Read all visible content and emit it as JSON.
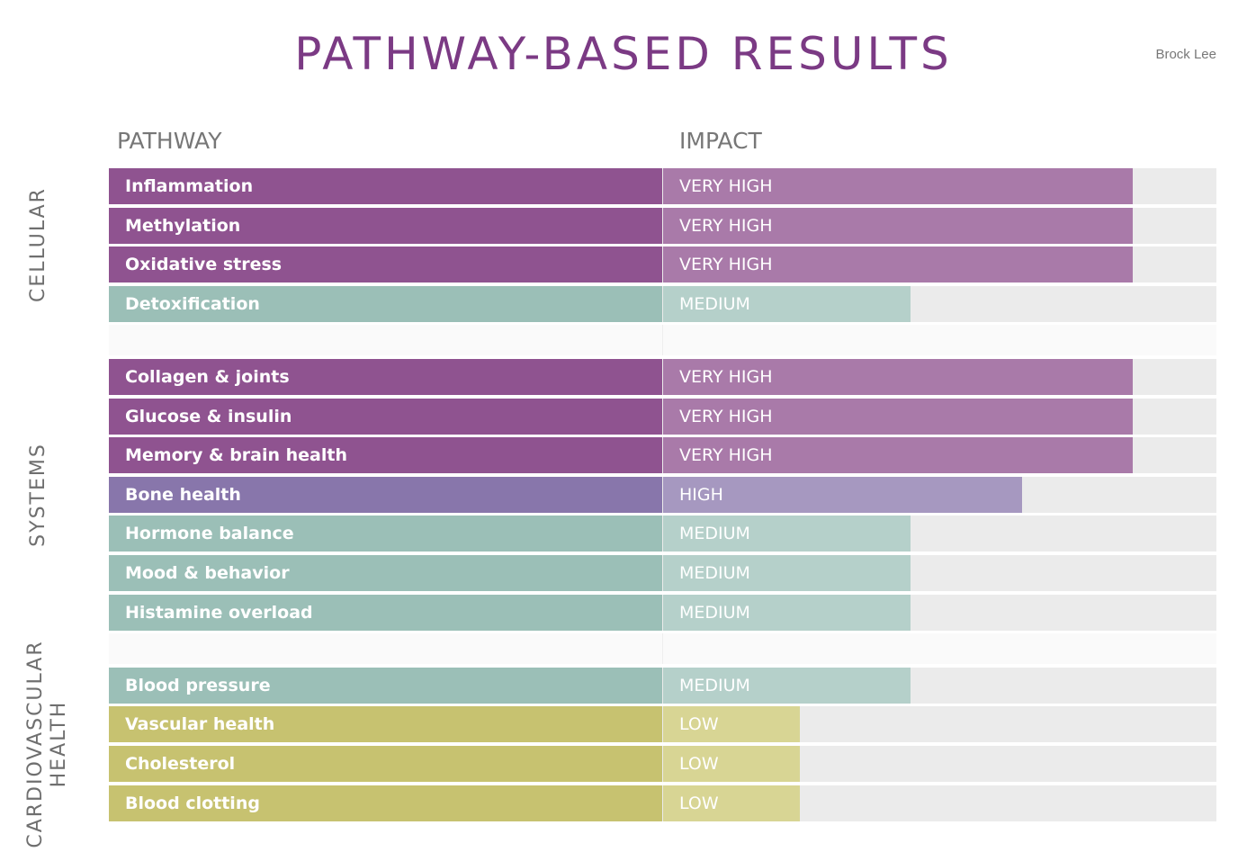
{
  "title": "PATHWAY-BASED RESULTS",
  "user_name": "Brock Lee",
  "headers": {
    "pathway": "PATHWAY",
    "impact": "IMPACT"
  },
  "levels": {
    "very_high": {
      "label": "VERY HIGH",
      "fraction": 0.848,
      "color": "#8f5390",
      "bar_color": "#a97aa9"
    },
    "high": {
      "label": "HIGH",
      "fraction": 0.648,
      "color": "#8876ab",
      "bar_color": "#a698c0"
    },
    "medium": {
      "label": "MEDIUM",
      "fraction": 0.447,
      "color": "#9bbfb7",
      "bar_color": "#b5d0ca"
    },
    "low": {
      "label": "LOW",
      "fraction": 0.247,
      "color": "#c7c270",
      "bar_color": "#d8d594"
    }
  },
  "groups": [
    {
      "label": "CELLULAR",
      "rows": [
        {
          "pathway": "Inflammation",
          "impact": "VERY HIGH",
          "level": "very_high"
        },
        {
          "pathway": "Methylation",
          "impact": "VERY HIGH",
          "level": "very_high"
        },
        {
          "pathway": "Oxidative stress",
          "impact": "VERY HIGH",
          "level": "very_high"
        },
        {
          "pathway": "Detoxification",
          "impact": "MEDIUM",
          "level": "medium"
        }
      ]
    },
    {
      "label": "SYSTEMS",
      "rows": [
        {
          "pathway": "Collagen & joints",
          "impact": "VERY HIGH",
          "level": "very_high"
        },
        {
          "pathway": "Glucose & insulin",
          "impact": "VERY HIGH",
          "level": "very_high"
        },
        {
          "pathway": "Memory & brain health",
          "impact": "VERY HIGH",
          "level": "very_high"
        },
        {
          "pathway": "Bone health",
          "impact": "HIGH",
          "level": "high"
        },
        {
          "pathway": "Hormone balance",
          "impact": "MEDIUM",
          "level": "medium"
        },
        {
          "pathway": "Mood & behavior",
          "impact": "MEDIUM",
          "level": "medium"
        },
        {
          "pathway": "Histamine overload",
          "impact": "MEDIUM",
          "level": "medium"
        }
      ]
    },
    {
      "label": "CARDIOVASCULAR HEALTH",
      "label_lines": [
        "CARDIOVASCULAR",
        "HEALTH"
      ],
      "rows": [
        {
          "pathway": "Blood pressure",
          "impact": "MEDIUM",
          "level": "medium"
        },
        {
          "pathway": "Vascular health",
          "impact": "LOW",
          "level": "low"
        },
        {
          "pathway": "Cholesterol",
          "impact": "LOW",
          "level": "low"
        },
        {
          "pathway": "Blood clotting",
          "impact": "LOW",
          "level": "low"
        }
      ]
    }
  ]
}
